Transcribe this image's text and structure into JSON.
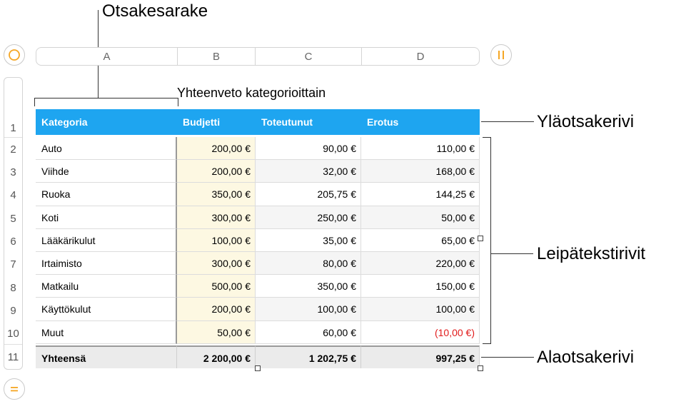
{
  "annotations": {
    "header_column": "Otsakesarake",
    "header_row": "Yläotsakerivi",
    "body_rows": "Leipätekstirivit",
    "footer_row": "Alaotsakerivi"
  },
  "column_letters": [
    "A",
    "B",
    "C",
    "D"
  ],
  "row_numbers": [
    "1",
    "2",
    "3",
    "4",
    "5",
    "6",
    "7",
    "8",
    "9",
    "10",
    "11"
  ],
  "table": {
    "title": "Yhteenveto kategorioittain",
    "headers": [
      "Kategoria",
      "Budjetti",
      "Toteutunut",
      "Erotus"
    ],
    "rows": [
      [
        "Auto",
        "200,00 €",
        "90,00 €",
        "110,00 €"
      ],
      [
        "Viihde",
        "200,00 €",
        "32,00 €",
        "168,00 €"
      ],
      [
        "Ruoka",
        "350,00 €",
        "205,75 €",
        "144,25 €"
      ],
      [
        "Koti",
        "300,00 €",
        "250,00 €",
        "50,00 €"
      ],
      [
        "Lääkärikulut",
        "100,00 €",
        "35,00 €",
        "65,00 €"
      ],
      [
        "Irtaimisto",
        "300,00 €",
        "80,00 €",
        "220,00 €"
      ],
      [
        "Matkailu",
        "500,00 €",
        "350,00 €",
        "150,00 €"
      ],
      [
        "Käyttökulut",
        "200,00 €",
        "100,00 €",
        "100,00 €"
      ],
      [
        "Muut",
        "50,00 €",
        "60,00 €",
        "(10,00 €)"
      ]
    ],
    "footer": [
      "Yhteensä",
      "2 200,00 €",
      "1 202,75 €",
      "997,25 €"
    ]
  },
  "colors": {
    "header_bg": "#1ea5f0",
    "budget_column_bg": "#fdf8e2",
    "alt_row_bg": "#f5f5f5",
    "footer_bg": "#ebebeb",
    "negative": "#e11b1b",
    "accent": "#f5a623"
  },
  "icons": {
    "select_table": "circle-icon",
    "pause_columns": "double-bar-icon",
    "add_rows": "equals-icon"
  }
}
